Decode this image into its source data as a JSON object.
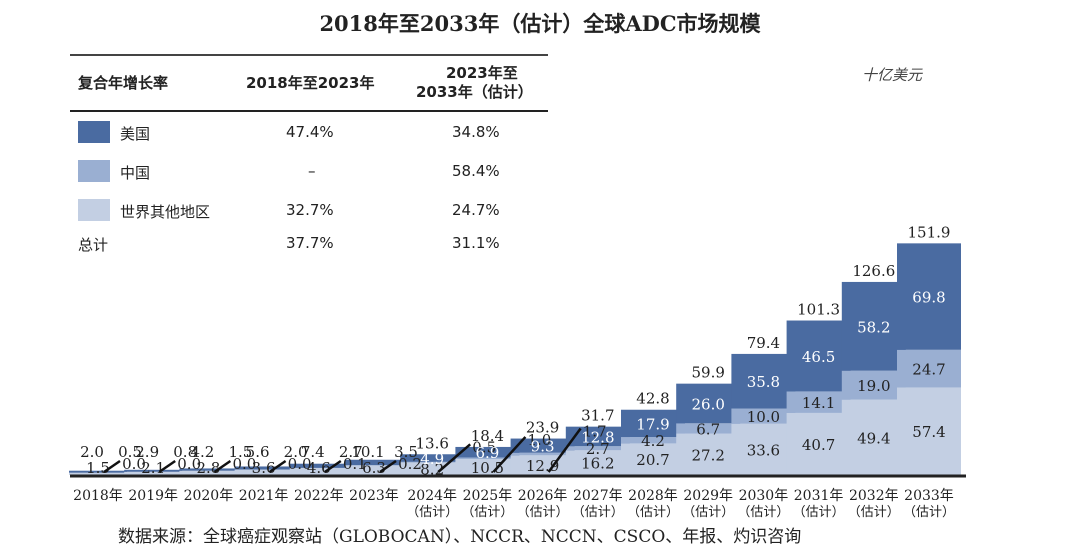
{
  "chart_data": {
    "type": "bar",
    "stacked": true,
    "title": "2018年至2033年（估计）全球ADC市场规模",
    "unit_label": "十亿美元",
    "categories": [
      "2018年",
      "2019年",
      "2020年",
      "2021年",
      "2022年",
      "2023年",
      "2024年",
      "2025年",
      "2026年",
      "2027年",
      "2028年",
      "2029年",
      "2030年",
      "2031年",
      "2032年",
      "2033年"
    ],
    "category_sublabels": [
      "",
      "",
      "",
      "",
      "",
      "",
      "（估计）",
      "（估计）",
      "（估计）",
      "（估计）",
      "（估计）",
      "（估计）",
      "（估计）",
      "（估计）",
      "（估计）",
      "（估计）"
    ],
    "series": [
      {
        "name": "世界其他地区",
        "color": "#c3cfe3",
        "values": [
          1.5,
          2.1,
          2.8,
          3.6,
          4.6,
          6.3,
          8.2,
          10.5,
          12.9,
          16.2,
          20.7,
          27.2,
          33.6,
          40.7,
          49.4,
          57.4
        ]
      },
      {
        "name": "中国",
        "color": "#9aafd2",
        "values": [
          0.0,
          0.0,
          0.0,
          0.0,
          0.1,
          0.2,
          0.5,
          1.0,
          1.7,
          2.7,
          4.2,
          6.7,
          10.0,
          14.1,
          19.0,
          24.7
        ]
      },
      {
        "name": "美国",
        "color": "#4a6ba1",
        "values": [
          0.5,
          0.8,
          1.5,
          2.0,
          2.7,
          3.5,
          4.9,
          6.9,
          9.3,
          12.8,
          17.9,
          26.0,
          35.8,
          46.5,
          58.2,
          69.8
        ]
      }
    ],
    "totals": [
      2.0,
      2.9,
      4.2,
      5.6,
      7.4,
      10.1,
      13.6,
      18.4,
      23.9,
      31.7,
      42.8,
      59.9,
      79.4,
      101.3,
      126.6,
      151.9
    ],
    "ylim": [
      0,
      160
    ],
    "grid": false,
    "legend_position": "top-left"
  },
  "cagr_table": {
    "headers": [
      "复合年增长率",
      "2018年至2023年",
      "2023年至",
      "2033年（估计）"
    ],
    "rows": [
      {
        "label": "美国",
        "swatch": "#4a6ba1",
        "v1": "47.4%",
        "v2": "34.8%"
      },
      {
        "label": "中国",
        "swatch": "#9aafd2",
        "v1": "–",
        "v2": "58.4%"
      },
      {
        "label": "世界其他地区",
        "swatch": "#c3cfe3",
        "v1": "32.7%",
        "v2": "24.7%"
      },
      {
        "label": "总计",
        "swatch": null,
        "v1": "37.7%",
        "v2": "31.1%"
      }
    ]
  },
  "source": "数据来源：全球癌症观察站（GLOBOCAN）、NCCR、NCCN、CSCO、年报、灼识咨询"
}
